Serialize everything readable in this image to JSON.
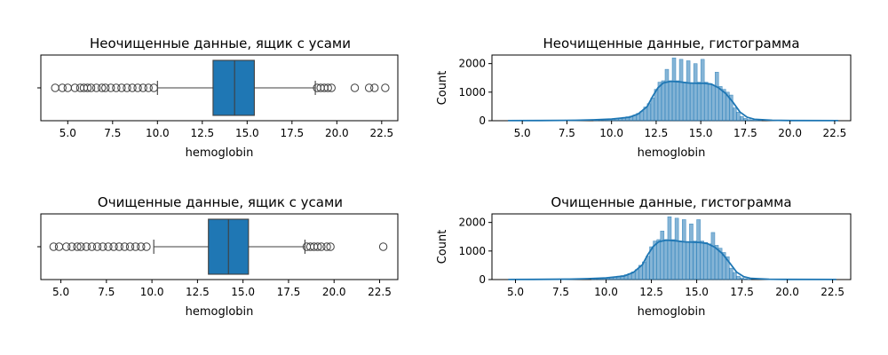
{
  "chart_data": [
    {
      "type": "boxplot",
      "title": "Неочищенные данные, ящик с усами",
      "xlabel": "hemoglobin",
      "xlim": [
        3.5,
        23.4
      ],
      "xticks": [
        5.0,
        7.5,
        10.0,
        12.5,
        15.0,
        17.5,
        20.0,
        22.5
      ],
      "xtick_labels": [
        "5.0",
        "7.5",
        "10.0",
        "12.5",
        "15.0",
        "17.5",
        "20.0",
        "22.5"
      ],
      "box": {
        "q1": 13.1,
        "median": 14.3,
        "q3": 15.4,
        "whisker_low": 10.0,
        "whisker_high": 18.8
      },
      "fill_color": "#1f77b4",
      "outliers": [
        4.3,
        4.7,
        5.0,
        5.4,
        5.7,
        5.9,
        6.1,
        6.3,
        6.6,
        6.9,
        7.1,
        7.4,
        7.7,
        8.0,
        8.3,
        8.6,
        8.9,
        9.2,
        9.5,
        9.8,
        18.9,
        19.1,
        19.3,
        19.5,
        19.7,
        21.0,
        21.8,
        22.1,
        22.7
      ]
    },
    {
      "type": "histogram",
      "title": "Неочищенные данные, гистограмма",
      "xlabel": "hemoglobin",
      "ylabel": "Count",
      "xlim": [
        3.3,
        23.4
      ],
      "ylim": [
        0,
        2300
      ],
      "xticks": [
        5.0,
        7.5,
        10.0,
        12.5,
        15.0,
        17.5,
        20.0,
        22.5
      ],
      "xtick_labels": [
        "5.0",
        "7.5",
        "10.0",
        "12.5",
        "15.0",
        "17.5",
        "20.0",
        "22.5"
      ],
      "yticks": [
        0,
        1000,
        2000
      ],
      "ytick_labels": [
        "0",
        "1000",
        "2000"
      ],
      "bar_color": "#1f77b4",
      "kde": true,
      "bins": [
        {
          "x": 9.0,
          "w": 0.2,
          "h": 20
        },
        {
          "x": 9.2,
          "w": 0.2,
          "h": 25
        },
        {
          "x": 9.4,
          "w": 0.2,
          "h": 35
        },
        {
          "x": 9.6,
          "w": 0.2,
          "h": 45
        },
        {
          "x": 9.8,
          "w": 0.2,
          "h": 55
        },
        {
          "x": 10.0,
          "w": 0.2,
          "h": 60
        },
        {
          "x": 10.2,
          "w": 0.2,
          "h": 80
        },
        {
          "x": 10.4,
          "w": 0.2,
          "h": 100
        },
        {
          "x": 10.6,
          "w": 0.2,
          "h": 120
        },
        {
          "x": 10.8,
          "w": 0.2,
          "h": 140
        },
        {
          "x": 11.0,
          "w": 0.2,
          "h": 160
        },
        {
          "x": 11.2,
          "w": 0.2,
          "h": 200
        },
        {
          "x": 11.4,
          "w": 0.2,
          "h": 260
        },
        {
          "x": 11.6,
          "w": 0.2,
          "h": 330
        },
        {
          "x": 11.8,
          "w": 0.2,
          "h": 480
        },
        {
          "x": 12.0,
          "w": 0.2,
          "h": 600
        },
        {
          "x": 12.2,
          "w": 0.2,
          "h": 800
        },
        {
          "x": 12.4,
          "w": 0.2,
          "h": 1100
        },
        {
          "x": 12.6,
          "w": 0.2,
          "h": 1350
        },
        {
          "x": 12.8,
          "w": 0.2,
          "h": 1400
        },
        {
          "x": 13.0,
          "w": 0.2,
          "h": 1800
        },
        {
          "x": 13.2,
          "w": 0.2,
          "h": 1400
        },
        {
          "x": 13.4,
          "w": 0.2,
          "h": 2200
        },
        {
          "x": 13.6,
          "w": 0.2,
          "h": 1400
        },
        {
          "x": 13.8,
          "w": 0.2,
          "h": 2150
        },
        {
          "x": 14.0,
          "w": 0.2,
          "h": 1350
        },
        {
          "x": 14.2,
          "w": 0.2,
          "h": 2100
        },
        {
          "x": 14.4,
          "w": 0.2,
          "h": 1300
        },
        {
          "x": 14.6,
          "w": 0.2,
          "h": 2000
        },
        {
          "x": 14.8,
          "w": 0.2,
          "h": 1350
        },
        {
          "x": 15.0,
          "w": 0.2,
          "h": 2150
        },
        {
          "x": 15.2,
          "w": 0.2,
          "h": 1350
        },
        {
          "x": 15.4,
          "w": 0.2,
          "h": 1300
        },
        {
          "x": 15.6,
          "w": 0.2,
          "h": 1250
        },
        {
          "x": 15.8,
          "w": 0.2,
          "h": 1700
        },
        {
          "x": 16.0,
          "w": 0.2,
          "h": 1200
        },
        {
          "x": 16.2,
          "w": 0.2,
          "h": 1100
        },
        {
          "x": 16.4,
          "w": 0.2,
          "h": 1000
        },
        {
          "x": 16.6,
          "w": 0.2,
          "h": 900
        },
        {
          "x": 16.8,
          "w": 0.2,
          "h": 450
        },
        {
          "x": 17.0,
          "w": 0.2,
          "h": 300
        },
        {
          "x": 17.2,
          "w": 0.2,
          "h": 150
        },
        {
          "x": 17.4,
          "w": 0.2,
          "h": 80
        },
        {
          "x": 17.6,
          "w": 0.2,
          "h": 40
        },
        {
          "x": 17.8,
          "w": 0.2,
          "h": 20
        },
        {
          "x": 18.0,
          "w": 0.2,
          "h": 10
        },
        {
          "x": 18.2,
          "w": 0.2,
          "h": 5
        }
      ],
      "kde_points": [
        [
          4.2,
          2
        ],
        [
          6,
          5
        ],
        [
          8,
          15
        ],
        [
          9,
          30
        ],
        [
          10,
          60
        ],
        [
          11,
          120
        ],
        [
          11.5,
          240
        ],
        [
          12,
          500
        ],
        [
          12.3,
          850
        ],
        [
          12.6,
          1150
        ],
        [
          12.9,
          1320
        ],
        [
          13.3,
          1380
        ],
        [
          13.8,
          1360
        ],
        [
          14.3,
          1320
        ],
        [
          14.8,
          1310
        ],
        [
          15.2,
          1310
        ],
        [
          15.6,
          1280
        ],
        [
          16.0,
          1150
        ],
        [
          16.4,
          950
        ],
        [
          16.8,
          650
        ],
        [
          17.2,
          300
        ],
        [
          17.6,
          120
        ],
        [
          18.0,
          50
        ],
        [
          19,
          15
        ],
        [
          20,
          6
        ],
        [
          22.7,
          2
        ]
      ]
    },
    {
      "type": "boxplot",
      "title": "Очищенные данные, ящик с усами",
      "xlabel": "hemoglobin",
      "xlim": [
        3.9,
        23.5
      ],
      "xticks": [
        5.0,
        7.5,
        10.0,
        12.5,
        15.0,
        17.5,
        20.0,
        22.5
      ],
      "xtick_labels": [
        "5.0",
        "7.5",
        "10.0",
        "12.5",
        "15.0",
        "17.5",
        "20.0",
        "22.5"
      ],
      "box": {
        "q1": 13.1,
        "median": 14.2,
        "q3": 15.3,
        "whisker_low": 10.1,
        "whisker_high": 18.4
      },
      "fill_color": "#1f77b4",
      "outliers": [
        4.6,
        4.9,
        5.3,
        5.6,
        5.9,
        6.1,
        6.4,
        6.7,
        7.0,
        7.3,
        7.6,
        7.9,
        8.2,
        8.5,
        8.8,
        9.1,
        9.4,
        9.7,
        18.5,
        18.7,
        18.9,
        19.1,
        19.3,
        19.6,
        19.8,
        22.7
      ]
    },
    {
      "type": "histogram",
      "title": "Очищенные данные, гистограмма",
      "xlabel": "hemoglobin",
      "ylabel": "Count",
      "xlim": [
        3.7,
        23.5
      ],
      "ylim": [
        0,
        2300
      ],
      "xticks": [
        5.0,
        7.5,
        10.0,
        12.5,
        15.0,
        17.5,
        20.0,
        22.5
      ],
      "xtick_labels": [
        "5.0",
        "7.5",
        "10.0",
        "12.5",
        "15.0",
        "17.5",
        "20.0",
        "22.5"
      ],
      "yticks": [
        0,
        1000,
        2000
      ],
      "ytick_labels": [
        "0",
        "1000",
        "2000"
      ],
      "bar_color": "#1f77b4",
      "kde": true,
      "bins": [
        {
          "x": 9.2,
          "w": 0.2,
          "h": 20
        },
        {
          "x": 9.4,
          "w": 0.2,
          "h": 30
        },
        {
          "x": 9.6,
          "w": 0.2,
          "h": 40
        },
        {
          "x": 9.8,
          "w": 0.2,
          "h": 50
        },
        {
          "x": 10.0,
          "w": 0.2,
          "h": 60
        },
        {
          "x": 10.2,
          "w": 0.2,
          "h": 80
        },
        {
          "x": 10.4,
          "w": 0.2,
          "h": 100
        },
        {
          "x": 10.6,
          "w": 0.2,
          "h": 120
        },
        {
          "x": 10.8,
          "w": 0.2,
          "h": 140
        },
        {
          "x": 11.0,
          "w": 0.2,
          "h": 170
        },
        {
          "x": 11.2,
          "w": 0.2,
          "h": 210
        },
        {
          "x": 11.4,
          "w": 0.2,
          "h": 270
        },
        {
          "x": 11.6,
          "w": 0.2,
          "h": 350
        },
        {
          "x": 11.8,
          "w": 0.2,
          "h": 500
        },
        {
          "x": 12.0,
          "w": 0.2,
          "h": 620
        },
        {
          "x": 12.2,
          "w": 0.2,
          "h": 820
        },
        {
          "x": 12.4,
          "w": 0.2,
          "h": 1150
        },
        {
          "x": 12.6,
          "w": 0.2,
          "h": 1350
        },
        {
          "x": 12.8,
          "w": 0.2,
          "h": 1400
        },
        {
          "x": 13.0,
          "w": 0.2,
          "h": 1700
        },
        {
          "x": 13.2,
          "w": 0.2,
          "h": 1400
        },
        {
          "x": 13.4,
          "w": 0.2,
          "h": 2200
        },
        {
          "x": 13.6,
          "w": 0.2,
          "h": 1400
        },
        {
          "x": 13.8,
          "w": 0.2,
          "h": 2150
        },
        {
          "x": 14.0,
          "w": 0.2,
          "h": 1350
        },
        {
          "x": 14.2,
          "w": 0.2,
          "h": 2100
        },
        {
          "x": 14.4,
          "w": 0.2,
          "h": 1300
        },
        {
          "x": 14.6,
          "w": 0.2,
          "h": 1950
        },
        {
          "x": 14.8,
          "w": 0.2,
          "h": 1350
        },
        {
          "x": 15.0,
          "w": 0.2,
          "h": 2100
        },
        {
          "x": 15.2,
          "w": 0.2,
          "h": 1350
        },
        {
          "x": 15.4,
          "w": 0.2,
          "h": 1300
        },
        {
          "x": 15.6,
          "w": 0.2,
          "h": 1250
        },
        {
          "x": 15.8,
          "w": 0.2,
          "h": 1650
        },
        {
          "x": 16.0,
          "w": 0.2,
          "h": 1200
        },
        {
          "x": 16.2,
          "w": 0.2,
          "h": 1100
        },
        {
          "x": 16.4,
          "w": 0.2,
          "h": 950
        },
        {
          "x": 16.6,
          "w": 0.2,
          "h": 800
        },
        {
          "x": 16.8,
          "w": 0.2,
          "h": 400
        },
        {
          "x": 17.0,
          "w": 0.2,
          "h": 250
        },
        {
          "x": 17.2,
          "w": 0.2,
          "h": 120
        },
        {
          "x": 17.4,
          "w": 0.2,
          "h": 60
        },
        {
          "x": 17.6,
          "w": 0.2,
          "h": 30
        },
        {
          "x": 17.8,
          "w": 0.2,
          "h": 15
        }
      ],
      "kde_points": [
        [
          4.6,
          2
        ],
        [
          6,
          5
        ],
        [
          8,
          15
        ],
        [
          9,
          30
        ],
        [
          10,
          60
        ],
        [
          11,
          125
        ],
        [
          11.5,
          250
        ],
        [
          12,
          520
        ],
        [
          12.3,
          870
        ],
        [
          12.6,
          1160
        ],
        [
          12.9,
          1320
        ],
        [
          13.3,
          1380
        ],
        [
          13.8,
          1360
        ],
        [
          14.3,
          1320
        ],
        [
          14.8,
          1310
        ],
        [
          15.2,
          1300
        ],
        [
          15.6,
          1260
        ],
        [
          16.0,
          1130
        ],
        [
          16.4,
          920
        ],
        [
          16.8,
          600
        ],
        [
          17.2,
          260
        ],
        [
          17.6,
          100
        ],
        [
          18.0,
          40
        ],
        [
          19,
          12
        ],
        [
          20,
          5
        ],
        [
          22.7,
          2
        ]
      ]
    }
  ]
}
